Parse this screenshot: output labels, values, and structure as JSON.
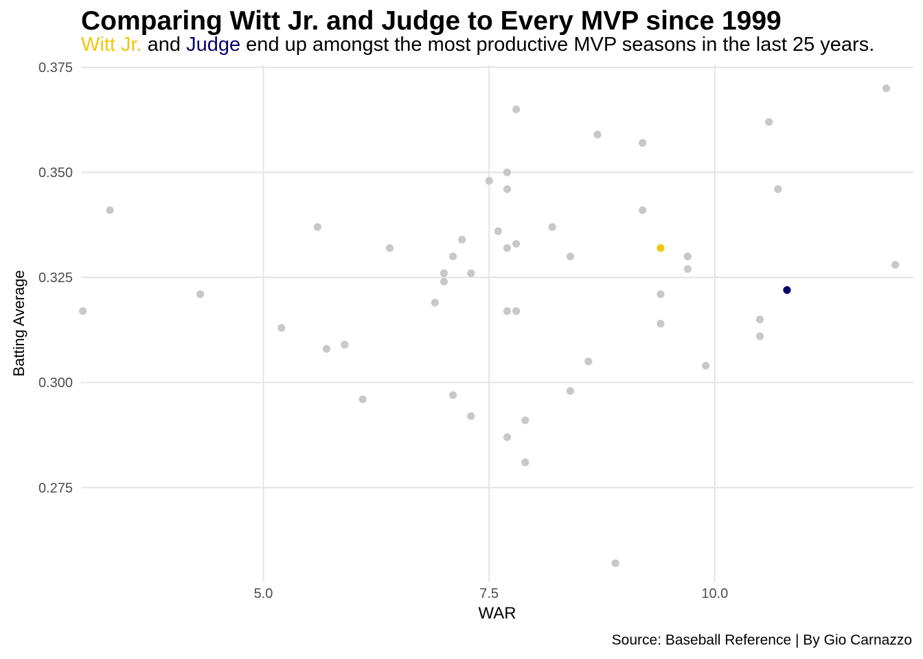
{
  "title": "Comparing Witt Jr. and Judge to Every MVP since 1999",
  "subtitle": {
    "witt": "Witt Jr.",
    "and": " and ",
    "judge": "Judge",
    "rest": " end up amongst the most productive MVP seasons in the last 25 years."
  },
  "caption": "Source: Baseball Reference | By Gio Carnazzo",
  "colors": {
    "witt": "#f2c60f",
    "judge": "#05006b",
    "others": "#c8c8c8",
    "grid": "#e6e6e6"
  },
  "chart_data": {
    "type": "scatter",
    "title": "Comparing Witt Jr. and Judge to Every MVP since 1999",
    "xlabel": "WAR",
    "ylabel": "Batting Average",
    "xlim": [
      2.98,
      12.2
    ],
    "ylim": [
      0.2525,
      0.3755
    ],
    "x_ticks": [
      5.0,
      7.5,
      10.0
    ],
    "x_tick_labels": [
      "5.0",
      "7.5",
      "10.0"
    ],
    "y_ticks": [
      0.275,
      0.3,
      0.325,
      0.35,
      0.375
    ],
    "y_tick_labels": [
      "0.275",
      "0.300",
      "0.325",
      "0.350",
      "0.375"
    ],
    "grid": true,
    "series": [
      {
        "name": "Witt Jr.",
        "points": [
          [
            9.4,
            0.332
          ]
        ]
      },
      {
        "name": "Judge",
        "points": [
          [
            10.8,
            0.322
          ]
        ]
      },
      {
        "points": [
          [
            3.0,
            0.317
          ],
          [
            3.3,
            0.341
          ],
          [
            4.3,
            0.321
          ],
          [
            5.2,
            0.313
          ],
          [
            5.6,
            0.337
          ],
          [
            5.7,
            0.308
          ],
          [
            5.9,
            0.309
          ],
          [
            6.1,
            0.296
          ],
          [
            6.4,
            0.332
          ],
          [
            6.9,
            0.319
          ],
          [
            7.0,
            0.326
          ],
          [
            7.0,
            0.324
          ],
          [
            7.1,
            0.33
          ],
          [
            7.1,
            0.297
          ],
          [
            7.2,
            0.334
          ],
          [
            7.3,
            0.326
          ],
          [
            7.3,
            0.292
          ],
          [
            7.5,
            0.348
          ],
          [
            7.6,
            0.336
          ],
          [
            7.7,
            0.35
          ],
          [
            7.7,
            0.346
          ],
          [
            7.7,
            0.332
          ],
          [
            7.7,
            0.317
          ],
          [
            7.7,
            0.287
          ],
          [
            7.8,
            0.365
          ],
          [
            7.8,
            0.333
          ],
          [
            7.8,
            0.317
          ],
          [
            7.9,
            0.291
          ],
          [
            7.9,
            0.281
          ],
          [
            8.2,
            0.337
          ],
          [
            8.4,
            0.33
          ],
          [
            8.4,
            0.298
          ],
          [
            8.6,
            0.305
          ],
          [
            8.7,
            0.359
          ],
          [
            8.9,
            0.257
          ],
          [
            9.2,
            0.357
          ],
          [
            9.2,
            0.341
          ],
          [
            9.4,
            0.321
          ],
          [
            9.4,
            0.314
          ],
          [
            9.7,
            0.33
          ],
          [
            9.7,
            0.327
          ],
          [
            9.9,
            0.304
          ],
          [
            10.5,
            0.315
          ],
          [
            10.5,
            0.311
          ],
          [
            10.6,
            0.362
          ],
          [
            10.7,
            0.346
          ],
          [
            11.9,
            0.37
          ],
          [
            12.0,
            0.328
          ]
        ]
      }
    ]
  }
}
